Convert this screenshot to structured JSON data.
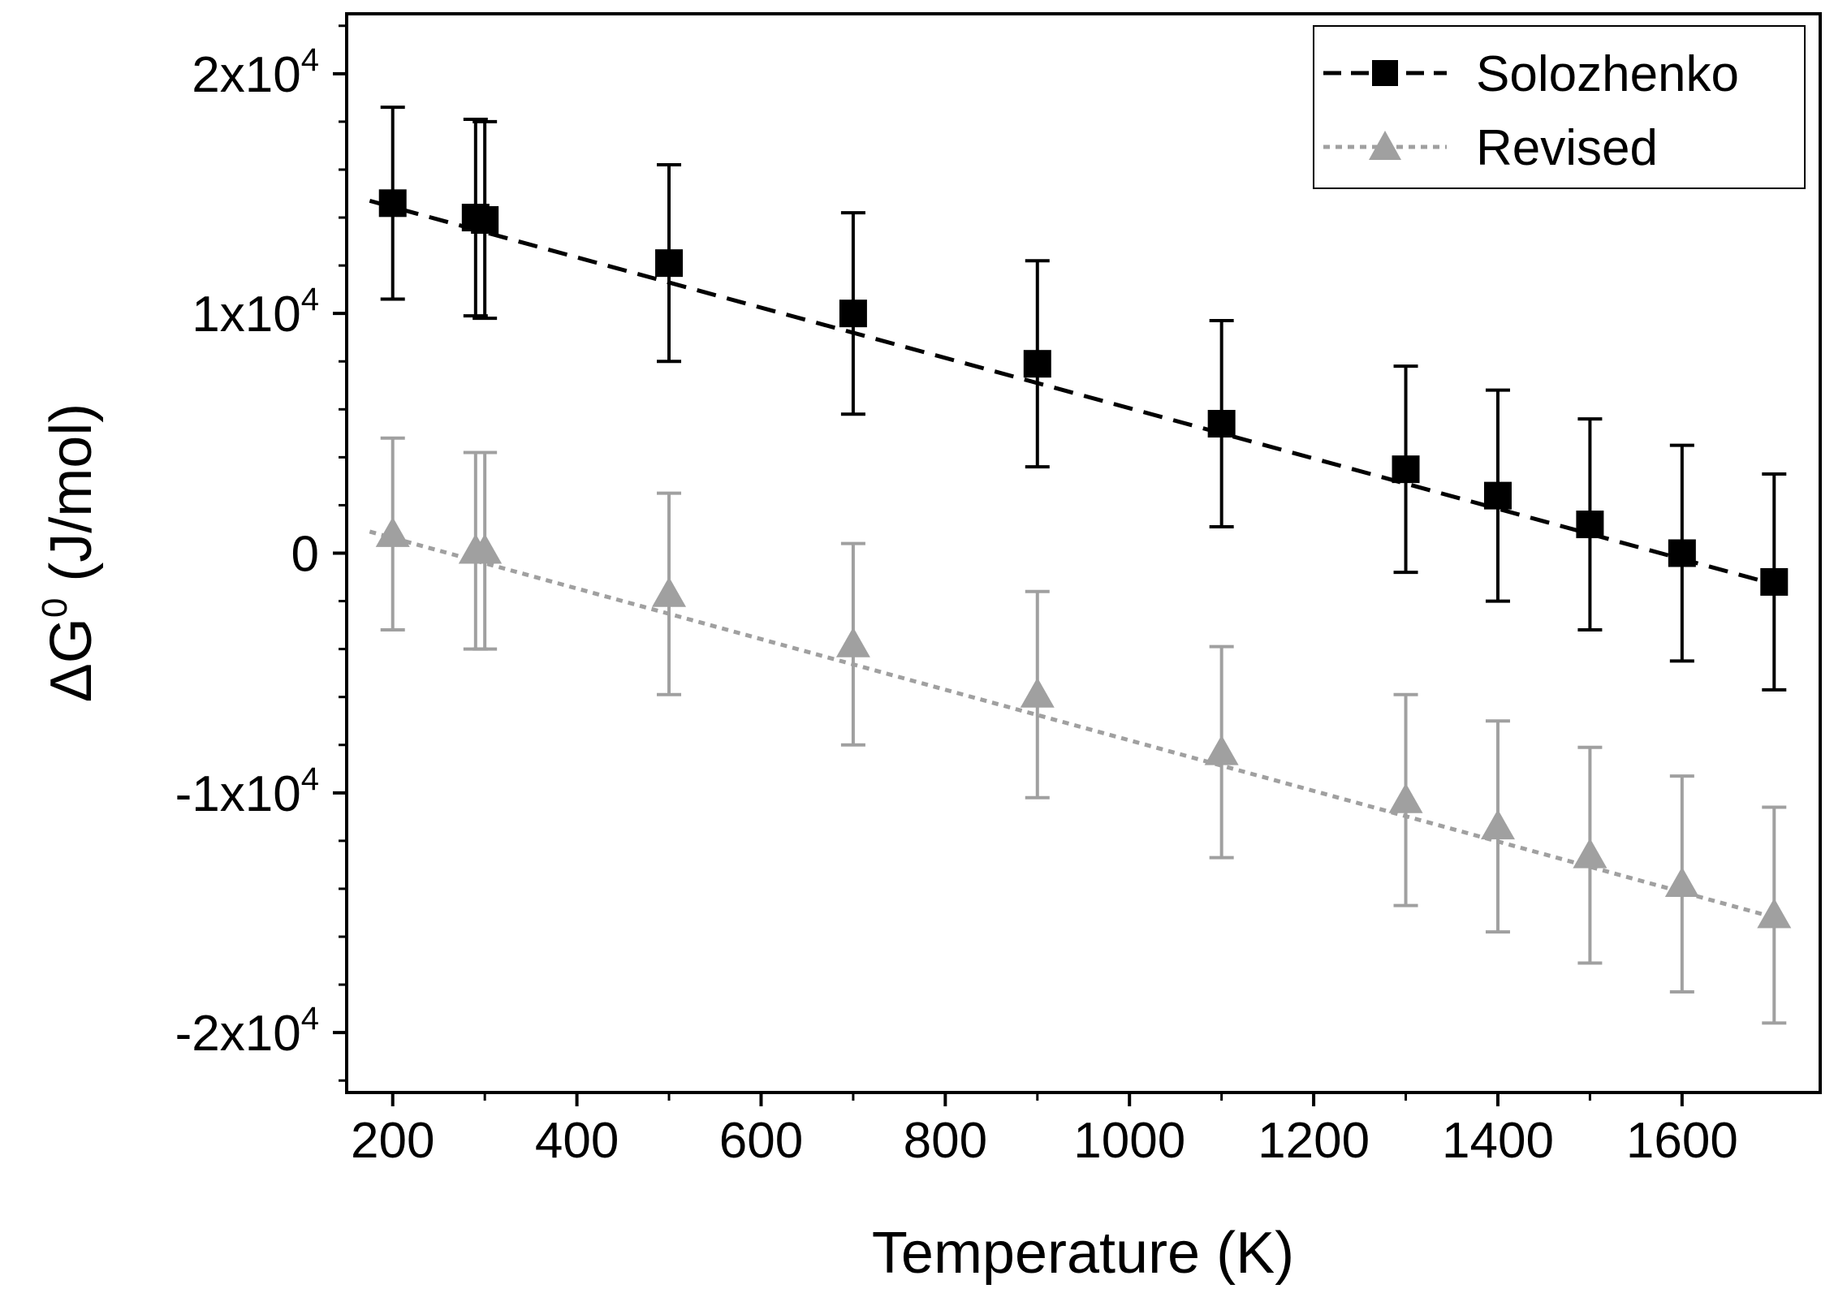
{
  "chart_data": {
    "type": "scatter",
    "title": "",
    "xlabel": "Temperature (K)",
    "ylabel_main": "ΔG",
    "ylabel_sup": "0",
    "ylabel_unit": " (J/mol)",
    "xlim": [
      150,
      1750
    ],
    "ylim": [
      -22500,
      22500
    ],
    "x_ticks": [
      {
        "value": 200,
        "label": "200"
      },
      {
        "value": 400,
        "label": "400"
      },
      {
        "value": 600,
        "label": "600"
      },
      {
        "value": 800,
        "label": "800"
      },
      {
        "value": 1000,
        "label": "1000"
      },
      {
        "value": 1200,
        "label": "1200"
      },
      {
        "value": 1400,
        "label": "1400"
      },
      {
        "value": 1600,
        "label": "1600"
      }
    ],
    "y_ticks": [
      {
        "value": 20000,
        "label": "2x10",
        "sup": "4"
      },
      {
        "value": 10000,
        "label": "1x10",
        "sup": "4"
      },
      {
        "value": 0,
        "label": "0",
        "sup": ""
      },
      {
        "value": -10000,
        "label": "-1x10",
        "sup": "4"
      },
      {
        "value": -20000,
        "label": "-2x10",
        "sup": "4"
      }
    ],
    "legend_position": "top-right",
    "series": [
      {
        "name": "Solozhenko",
        "color": "#000000",
        "marker": "square",
        "line_style": "dashed",
        "x": [
          200,
          290,
          300,
          500,
          700,
          900,
          1100,
          1300,
          1400,
          1500,
          1600,
          1700
        ],
        "y": [
          14600,
          14000,
          13900,
          12100,
          10000,
          7900,
          5400,
          3500,
          2400,
          1200,
          0,
          -1200
        ],
        "err": [
          4000,
          4100,
          4100,
          4100,
          4200,
          4300,
          4300,
          4300,
          4400,
          4400,
          4500,
          4500
        ],
        "fit": {
          "x": [
            175,
            1710
          ],
          "y": [
            14700,
            -1400
          ]
        }
      },
      {
        "name": "Revised",
        "color": "#a0a0a0",
        "marker": "triangle",
        "line_style": "dotted",
        "x": [
          200,
          290,
          300,
          500,
          700,
          900,
          1100,
          1300,
          1400,
          1500,
          1600,
          1700
        ],
        "y": [
          800,
          100,
          100,
          -1700,
          -3800,
          -5900,
          -8300,
          -10300,
          -11400,
          -12600,
          -13800,
          -15100
        ],
        "err": [
          4000,
          4100,
          4100,
          4200,
          4200,
          4300,
          4400,
          4400,
          4400,
          4500,
          4500,
          4500
        ],
        "fit": {
          "x": [
            175,
            1710
          ],
          "y": [
            900,
            -15300
          ]
        }
      }
    ]
  }
}
